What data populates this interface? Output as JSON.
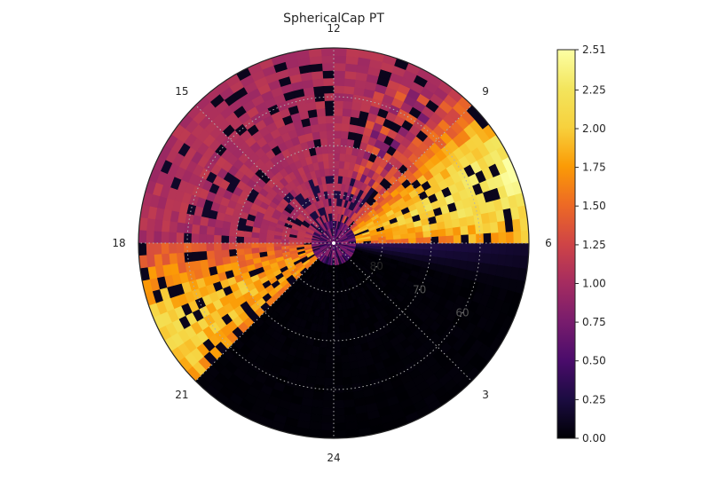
{
  "chart_data": {
    "type": "heatmap",
    "projection": "polar",
    "title": "SphericalCap PT",
    "colormap": "inferno",
    "theta_tick_labels": [
      "12",
      "9",
      "6",
      "3",
      "24",
      "21",
      "18",
      "15"
    ],
    "radial_tick_labels": [
      "80",
      "70",
      "60"
    ],
    "radial_axis": {
      "center_value": 90,
      "edge_value": 50,
      "units": "degrees latitude"
    },
    "grid": true,
    "colorbar": {
      "min": 0.0,
      "max": 2.51,
      "tick_labels": [
        "2.51",
        "2.25",
        "2.00",
        "1.75",
        "1.50",
        "1.25",
        "1.00",
        "0.75",
        "0.50",
        "0.25",
        "0.00"
      ],
      "tick_values": [
        2.51,
        2.25,
        2.0,
        1.75,
        1.5,
        1.25,
        1.0,
        0.75,
        0.5,
        0.25,
        0.0
      ]
    },
    "sectors": [
      {
        "mlt_start": 9.5,
        "mlt_end": 15.5,
        "base_value": 1.05,
        "note": "dayside uniform ~1.0-1.2 with patchy dark cells"
      },
      {
        "mlt_start": 6.0,
        "mlt_end": 9.5,
        "base_value": 1.9,
        "note": "bright arc, strongest near 7 MLT (~2.4)"
      },
      {
        "mlt_start": 15.5,
        "mlt_end": 18.0,
        "base_value": 1.1,
        "note": "dusk moderate"
      },
      {
        "mlt_start": 18.0,
        "mlt_end": 21.0,
        "base_value": 1.5,
        "note": "evening arc, orange ~1.9 near 20 MLT"
      },
      {
        "mlt_start": 21.0,
        "mlt_end": 6.0,
        "base_value": 0.02,
        "note": "night side near zero"
      }
    ]
  }
}
